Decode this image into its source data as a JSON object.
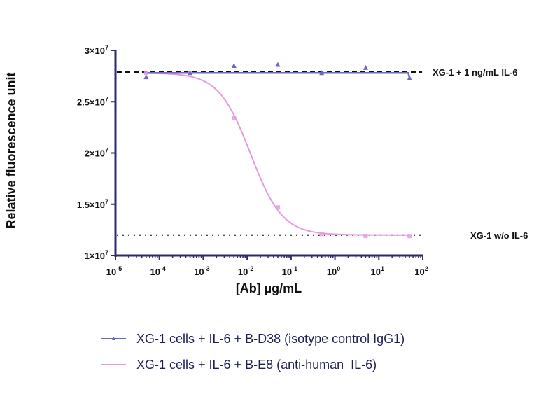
{
  "chart_data": {
    "type": "line",
    "title": "",
    "xlabel": "[Ab] µg/mL",
    "ylabel": "Relative fluorescence unit",
    "xscale": "log",
    "xlim": [
      1e-05,
      100
    ],
    "ylim": [
      10000000,
      30000000
    ],
    "x_tick_exponents": [
      "-5",
      "-4",
      "-3",
      "-2",
      "-1",
      "0",
      "1",
      "2"
    ],
    "x_tick_base": "10",
    "y_ticks": [
      {
        "value": 10000000,
        "mant": "1×10",
        "exp": "7"
      },
      {
        "value": 15000000,
        "mant": "1.5×10",
        "exp": "7"
      },
      {
        "value": 20000000,
        "mant": "2×10",
        "exp": "7"
      },
      {
        "value": 25000000,
        "mant": "2.5×10",
        "exp": "7"
      },
      {
        "value": 30000000,
        "mant": "3×10",
        "exp": "7"
      }
    ],
    "grid": false,
    "legend_position": "bottom",
    "x": [
      5e-05,
      0.0005,
      0.005,
      0.05,
      0.5,
      5,
      50
    ],
    "series": [
      {
        "name": "XG-1 cells + IL-6 + B-D38 (isotype control IgG1)",
        "color": "#6a6ac0",
        "marker": "triangle",
        "values": [
          27400000,
          27800000,
          28500000,
          28600000,
          27800000,
          28300000,
          27300000
        ]
      },
      {
        "name": "XG-1 cells + IL-6 + B-E8 (anti-human  IL-6)",
        "color": "#e59ae0",
        "marker": "square",
        "values": [
          27800000,
          27800000,
          23400000,
          14700000,
          12100000,
          11900000,
          11900000
        ],
        "fit": {
          "top": 27800000,
          "bottom": 12000000,
          "ic50": 0.012,
          "hill": 1.2
        }
      }
    ],
    "reference_lines": [
      {
        "label": "XG-1 + 1 ng/mL IL-6",
        "value": 27900000,
        "style": "dashed"
      },
      {
        "label": "XG-1 w/o IL-6",
        "value": 12000000,
        "style": "dotted"
      }
    ]
  }
}
